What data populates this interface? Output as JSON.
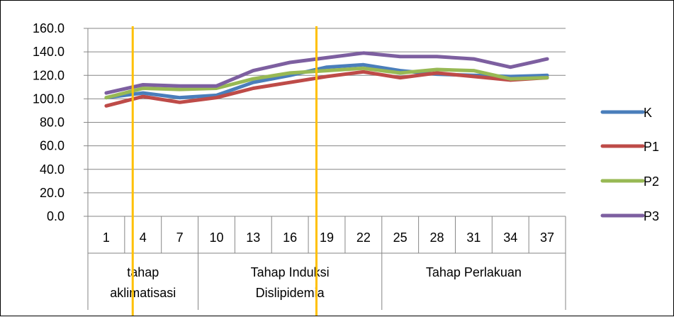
{
  "chart_data": {
    "type": "line",
    "categories": [
      "1",
      "4",
      "7",
      "10",
      "13",
      "16",
      "19",
      "22",
      "25",
      "28",
      "31",
      "34",
      "37"
    ],
    "category_groups": [
      {
        "label_lines": [
          "tahap",
          "aklimatisasi"
        ],
        "span": 3
      },
      {
        "label_lines": [
          "Tahap Induksi",
          "Dislipidemia"
        ],
        "span": 5
      },
      {
        "label_lines": [
          "Tahap Perlakuan"
        ],
        "span": 5
      }
    ],
    "ylim": [
      0,
      160
    ],
    "y_ticks": [
      "0.0",
      "20.0",
      "40.0",
      "60.0",
      "80.0",
      "100.0",
      "120.0",
      "140.0",
      "160.0"
    ],
    "grid": "horizontal",
    "legend_position": "right",
    "series": [
      {
        "name": "K",
        "color": "#4A7EBB",
        "values": [
          101,
          105,
          101,
          103,
          114,
          120,
          127,
          129,
          124,
          121,
          120,
          119,
          120
        ]
      },
      {
        "name": "P1",
        "color": "#BE4B48",
        "values": [
          94,
          102,
          97,
          101,
          109,
          114,
          119,
          123,
          118,
          122,
          119,
          116,
          118
        ]
      },
      {
        "name": "P2",
        "color": "#98B954",
        "values": [
          101,
          109,
          108,
          109,
          117,
          122,
          124,
          126,
          122,
          125,
          124,
          117,
          118
        ]
      },
      {
        "name": "P3",
        "color": "#7D5FA0",
        "values": [
          105,
          112,
          111,
          111,
          124,
          131,
          135,
          139,
          136,
          136,
          134,
          127,
          134
        ]
      }
    ],
    "markers": {
      "color": "#FFC000",
      "after_categories": [
        "4",
        "19"
      ]
    }
  }
}
